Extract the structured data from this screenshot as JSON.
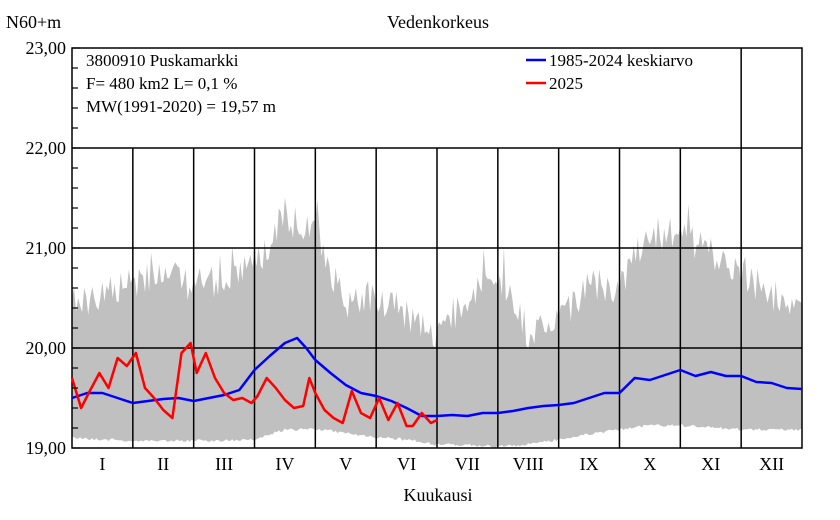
{
  "chart_data": {
    "type": "line",
    "title": "Vedenkorkeus",
    "ylabel": "N60+m",
    "xlabel": "Kuukausi",
    "ylim": [
      19.0,
      23.0
    ],
    "y_major_ticks": [
      "19,00",
      "20,00",
      "21,00",
      "22,00",
      "23,00"
    ],
    "months": [
      "I",
      "II",
      "III",
      "IV",
      "V",
      "VI",
      "VII",
      "VIII",
      "IX",
      "X",
      "XI",
      "XII"
    ],
    "info_lines": [
      "3800910 Puskamarkki",
      "F=    480 km2 L=  0,1 %",
      "MW(1991-2020) = 19,57 m"
    ],
    "legend": {
      "position": "top-right"
    },
    "range_band": {
      "color": "#c0c0c0",
      "x_month": [
        0,
        0.5,
        1,
        1.5,
        2,
        2.5,
        3,
        3.5,
        4,
        4.5,
        5,
        5.5,
        6,
        6.5,
        7,
        7.5,
        8,
        8.5,
        9,
        9.5,
        10,
        10.5,
        11,
        11.5,
        12
      ],
      "min": [
        19.12,
        19.1,
        19.09,
        19.09,
        19.09,
        19.09,
        19.1,
        19.2,
        19.2,
        19.17,
        19.12,
        19.1,
        19.05,
        19.05,
        19.03,
        19.05,
        19.1,
        19.15,
        19.2,
        19.24,
        19.24,
        19.22,
        19.2,
        19.2,
        19.2
      ],
      "max": [
        20.6,
        20.7,
        20.8,
        20.9,
        20.8,
        20.85,
        21.0,
        21.5,
        21.3,
        20.6,
        20.7,
        20.5,
        20.3,
        20.7,
        20.9,
        20.3,
        20.4,
        20.8,
        20.8,
        21.3,
        21.35,
        21.1,
        20.9,
        20.7,
        20.6
      ]
    },
    "series": [
      {
        "name": "1985-2024 keskiarvo",
        "color": "#0000ff",
        "x_month": [
          0,
          0.25,
          0.5,
          0.75,
          1,
          1.25,
          1.5,
          1.75,
          2,
          2.25,
          2.5,
          2.75,
          3,
          3.25,
          3.5,
          3.7,
          3.85,
          4,
          4.25,
          4.5,
          4.75,
          5,
          5.25,
          5.5,
          5.75,
          6,
          6.25,
          6.5,
          6.75,
          7,
          7.25,
          7.5,
          7.75,
          8,
          8.25,
          8.5,
          8.75,
          9,
          9.25,
          9.5,
          9.75,
          10,
          10.25,
          10.5,
          10.75,
          11,
          11.25,
          11.5,
          11.75,
          12
        ],
        "values": [
          19.5,
          19.55,
          19.55,
          19.5,
          19.45,
          19.47,
          19.49,
          19.5,
          19.47,
          19.5,
          19.53,
          19.58,
          19.78,
          19.92,
          20.05,
          20.1,
          20.0,
          19.88,
          19.75,
          19.63,
          19.55,
          19.52,
          19.47,
          19.4,
          19.32,
          19.32,
          19.33,
          19.32,
          19.35,
          19.35,
          19.37,
          19.4,
          19.42,
          19.43,
          19.45,
          19.5,
          19.55,
          19.55,
          19.7,
          19.68,
          19.73,
          19.78,
          19.72,
          19.76,
          19.72,
          19.72,
          19.66,
          19.65,
          19.6,
          19.59
        ]
      },
      {
        "name": "2025",
        "color": "#ff0000",
        "x_month": [
          0,
          0.15,
          0.3,
          0.45,
          0.6,
          0.75,
          0.9,
          1.05,
          1.2,
          1.35,
          1.5,
          1.65,
          1.8,
          1.95,
          2.05,
          2.2,
          2.35,
          2.5,
          2.65,
          2.8,
          2.95,
          3.05,
          3.2,
          3.35,
          3.5,
          3.65,
          3.8,
          3.9,
          4.0,
          4.15,
          4.3,
          4.45,
          4.6,
          4.75,
          4.9,
          5.05,
          5.2,
          5.35,
          5.5,
          5.6,
          5.75,
          5.9,
          6.0
        ],
        "values": [
          19.7,
          19.4,
          19.58,
          19.75,
          19.6,
          19.9,
          19.82,
          19.95,
          19.6,
          19.5,
          19.38,
          19.3,
          19.95,
          20.05,
          19.75,
          19.95,
          19.7,
          19.55,
          19.48,
          19.5,
          19.45,
          19.52,
          19.7,
          19.6,
          19.48,
          19.4,
          19.42,
          19.7,
          19.55,
          19.38,
          19.3,
          19.25,
          19.57,
          19.35,
          19.3,
          19.5,
          19.28,
          19.45,
          19.22,
          19.22,
          19.35,
          19.25,
          19.28
        ]
      }
    ]
  }
}
